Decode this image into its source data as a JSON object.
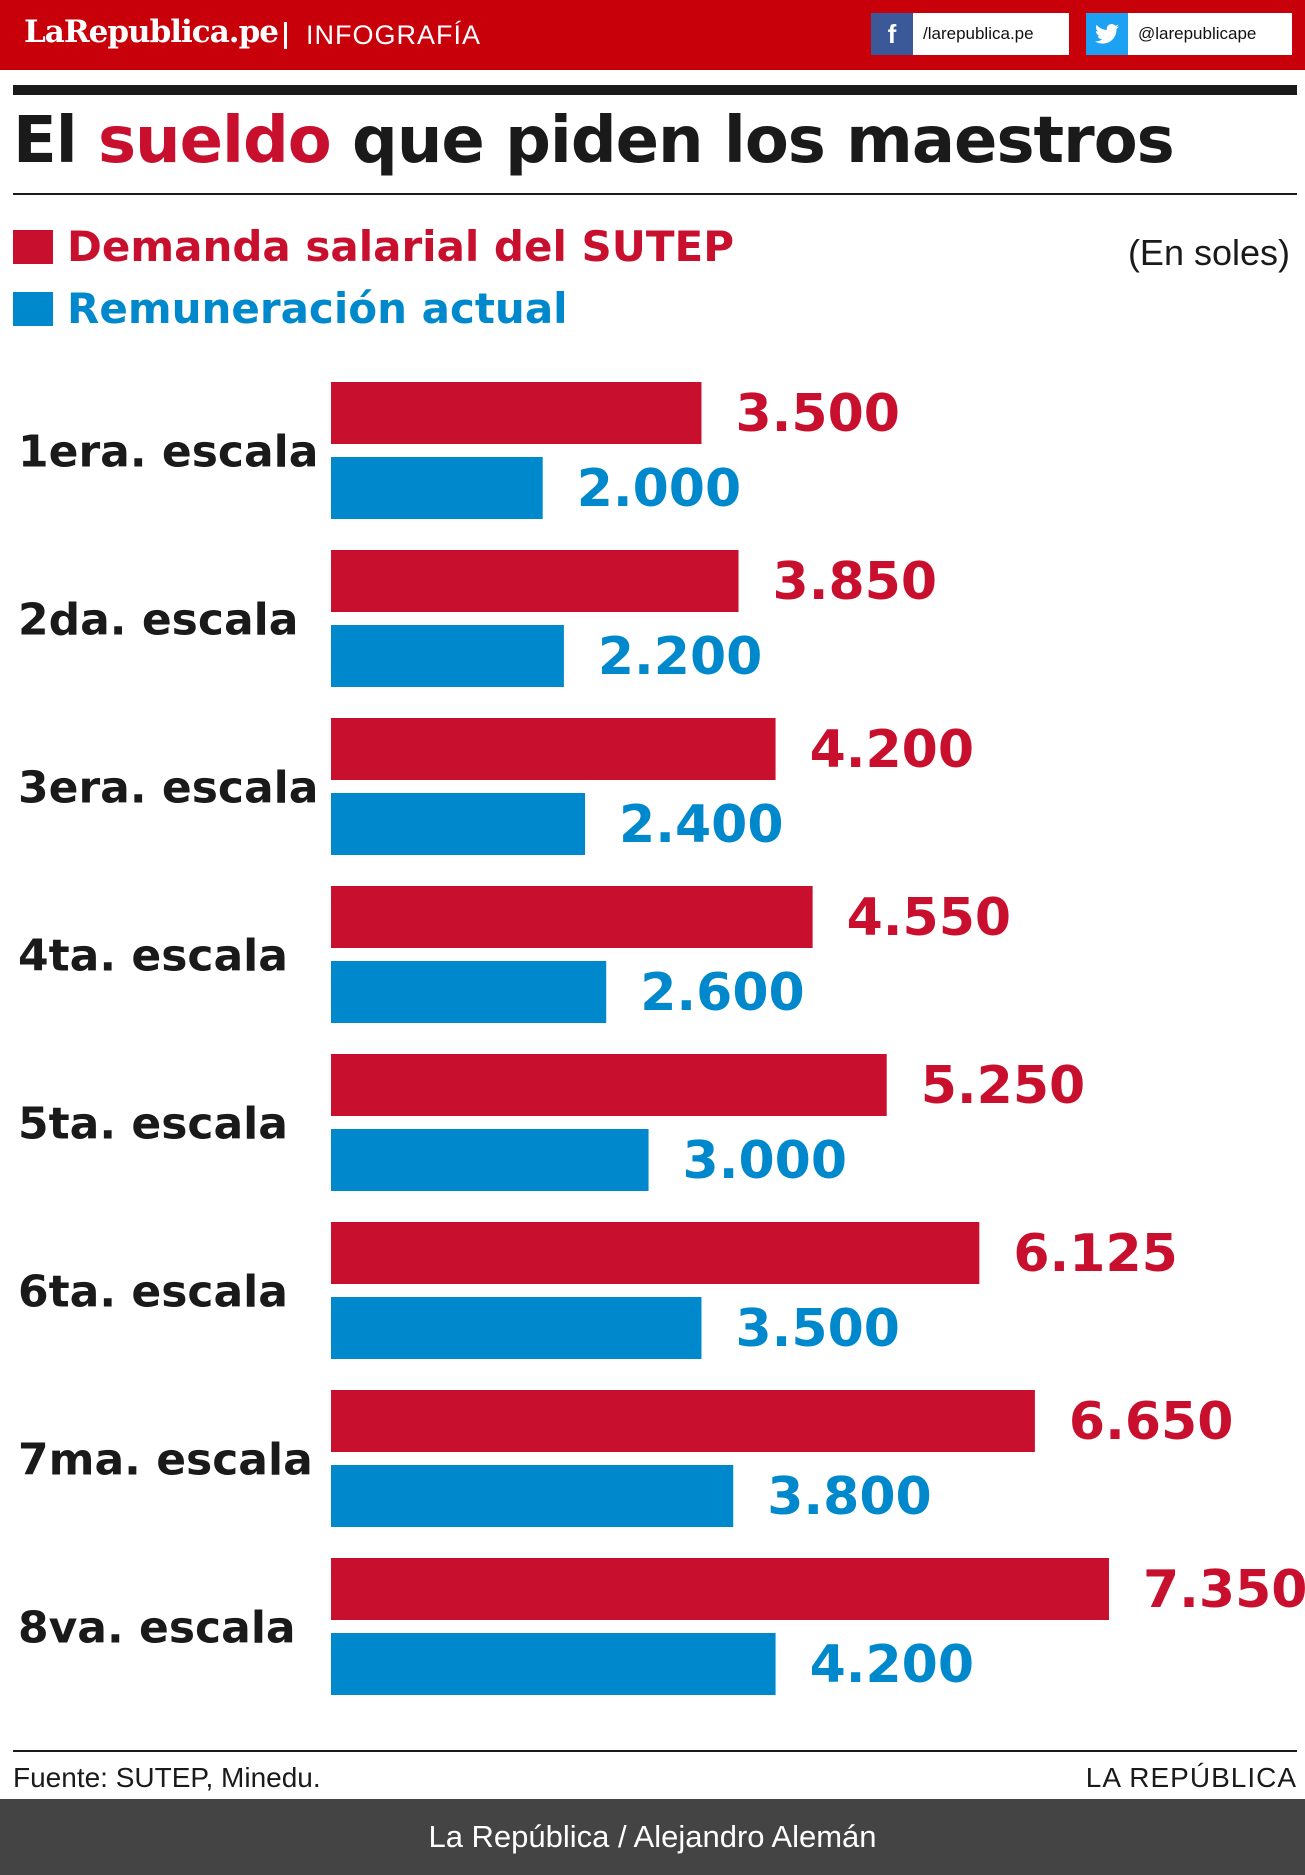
{
  "header": {
    "logo": "LaRepublica.pe",
    "section": "INFOGRAFÍA",
    "facebook": {
      "icon": "facebook-icon",
      "handle": "/larepublica.pe"
    },
    "twitter": {
      "icon": "twitter-icon",
      "handle": "@larepublicape"
    }
  },
  "title": {
    "before": "El ",
    "highlight": "sueldo",
    "after": " que piden los maestros"
  },
  "legend": {
    "demand": "Demanda salarial del SUTEP",
    "current": "Remuneración actual",
    "units": "(En soles)"
  },
  "colors": {
    "red": "#c8102e",
    "blue": "#0088cc",
    "header_red": "#c8000a",
    "footer_gray": "#444444"
  },
  "chart_data": {
    "type": "bar",
    "orientation": "horizontal",
    "title": "El sueldo que piden los maestros",
    "unit": "En soles",
    "categories": [
      "1era. escala",
      "2da. escala",
      "3era. escala",
      "4ta. escala",
      "5ta. escala",
      "6ta. escala",
      "7ma. escala",
      "8va. escala"
    ],
    "series": [
      {
        "name": "Demanda salarial del SUTEP",
        "color": "#c8102e",
        "values": [
          3500,
          3850,
          4200,
          4550,
          5250,
          6125,
          6650,
          7350
        ],
        "labels": [
          "3.500",
          "3.850",
          "4.200",
          "4.550",
          "5.250",
          "6.125",
          "6.650",
          "7.350"
        ]
      },
      {
        "name": "Remuneración actual",
        "color": "#0088cc",
        "values": [
          2000,
          2200,
          2400,
          2600,
          3000,
          3500,
          3800,
          4200
        ],
        "labels": [
          "2.000",
          "2.200",
          "2.400",
          "2.600",
          "3.000",
          "3.500",
          "3.800",
          "4.200"
        ]
      }
    ],
    "xlim": [
      0,
      7350
    ],
    "grid": false
  },
  "footer": {
    "source": "Fuente: SUTEP, Minedu.",
    "brand": "LA REPÚBLICA",
    "credit": "La República / Alejandro Alemán"
  }
}
